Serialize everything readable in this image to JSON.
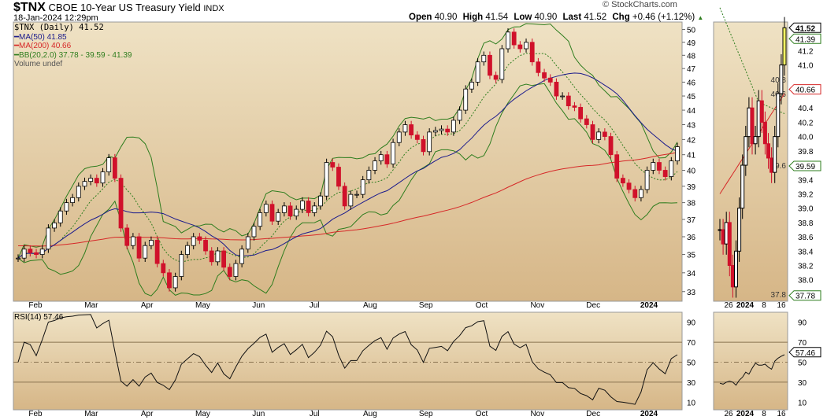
{
  "header": {
    "symbol": "$TNX",
    "name": "CBOE 10-Year US Treasury Yield",
    "exchange": "INDX",
    "datetime": "18-Jan-2024 12:29pm",
    "brand": "© StockCharts.com",
    "open_label": "Open",
    "open": "40.90",
    "high_label": "High",
    "high": "41.54",
    "low_label": "Low",
    "low": "40.90",
    "last_label": "Last",
    "last": "41.52",
    "chg_label": "Chg",
    "chg": "+0.46 (+1.12%)"
  },
  "legend": {
    "price": "$TNX (Daily) 41.52",
    "ma50": "MA(50) 41.85",
    "ma200": "MA(200) 40.66",
    "bb": "BB(20,2.0) 37.78 - 39.59 - 41.39",
    "volume": "Volume undef",
    "rsi": "RSI(14) 57.46"
  },
  "colors": {
    "up": "#000000",
    "down": "#d0112b",
    "ma50": "#1b1b8c",
    "ma200": "#d62828",
    "bb": "#2e7d1e",
    "bg_top": "#efe2c4",
    "bg_bottom": "#d6b687"
  },
  "chart_data": {
    "type": "candlestick",
    "title": "$TNX CBOE 10-Year US Treasury Yield",
    "x_tick_labels": [
      "Feb",
      "Mar",
      "Apr",
      "May",
      "Jun",
      "Jul",
      "Aug",
      "Sep",
      "Oct",
      "Nov",
      "Dec",
      "2024"
    ],
    "y_ticks": [
      33,
      34,
      35,
      36,
      37,
      38,
      39,
      40,
      41,
      42,
      43,
      44,
      45,
      46,
      47,
      48,
      49,
      50
    ],
    "ylim": [
      32.5,
      50.6
    ],
    "yscale": "log",
    "closes": [
      34.8,
      35.3,
      35.1,
      35.0,
      35.3,
      36.5,
      36.8,
      37.5,
      38.0,
      38.3,
      39.0,
      39.3,
      39.5,
      39.2,
      39.9,
      40.8,
      39.5,
      36.5,
      35.5,
      36.0,
      34.8,
      35.5,
      35.8,
      34.5,
      34.0,
      33.2,
      33.8,
      35.0,
      35.5,
      36.0,
      35.8,
      35.2,
      34.6,
      35.2,
      34.3,
      33.8,
      34.5,
      35.3,
      36.0,
      36.6,
      37.4,
      37.9,
      36.9,
      37.4,
      37.8,
      37.2,
      37.6,
      38.1,
      37.4,
      37.8,
      38.4,
      40.5,
      40.2,
      39.0,
      37.8,
      38.5,
      38.5,
      39.4,
      40.0,
      40.6,
      41.0,
      40.4,
      41.8,
      42.5,
      43.0,
      42.3,
      42.0,
      41.2,
      42.5,
      42.6,
      42.7,
      42.5,
      43.3,
      44.0,
      45.5,
      46.0,
      47.5,
      48.0,
      46.5,
      46.2,
      48.5,
      49.8,
      48.8,
      48.5,
      49.0,
      47.5,
      46.7,
      46.3,
      46.0,
      45.0,
      45.0,
      44.3,
      44.2,
      43.4,
      43.0,
      42.0,
      42.5,
      42.2,
      41.0,
      39.5,
      39.2,
      38.8,
      38.3,
      38.8,
      40.0,
      40.5,
      40.0,
      39.6,
      40.6,
      41.52
    ],
    "rsi_ticks": [
      10,
      30,
      50,
      70,
      90
    ],
    "rsi_last": 57.46,
    "detail": {
      "x_tick_labels": [
        "26",
        "2024",
        "8",
        "16"
      ],
      "y_ticks": [
        37.8,
        38.0,
        38.2,
        38.4,
        38.6,
        38.8,
        39.0,
        39.2,
        39.4,
        39.6,
        39.8,
        40.0,
        40.2,
        40.4,
        40.6,
        40.8,
        41.0,
        41.2
      ],
      "ylim": [
        37.7,
        41.6
      ],
      "tags": {
        "last": "41.52",
        "bb_upper": "41.39",
        "ma200": "40.66",
        "bb_mid": "39.59",
        "bb_lower": "37.78",
        "rsi": "57.46"
      },
      "closes": [
        38.7,
        38.5,
        38.8,
        38.2,
        37.9,
        38.4,
        39.0,
        39.6,
        40.0,
        40.4,
        39.9,
        40.0,
        40.5,
        40.2,
        39.9,
        39.7,
        39.5,
        40.0,
        40.6,
        41.0,
        41.52
      ]
    }
  }
}
